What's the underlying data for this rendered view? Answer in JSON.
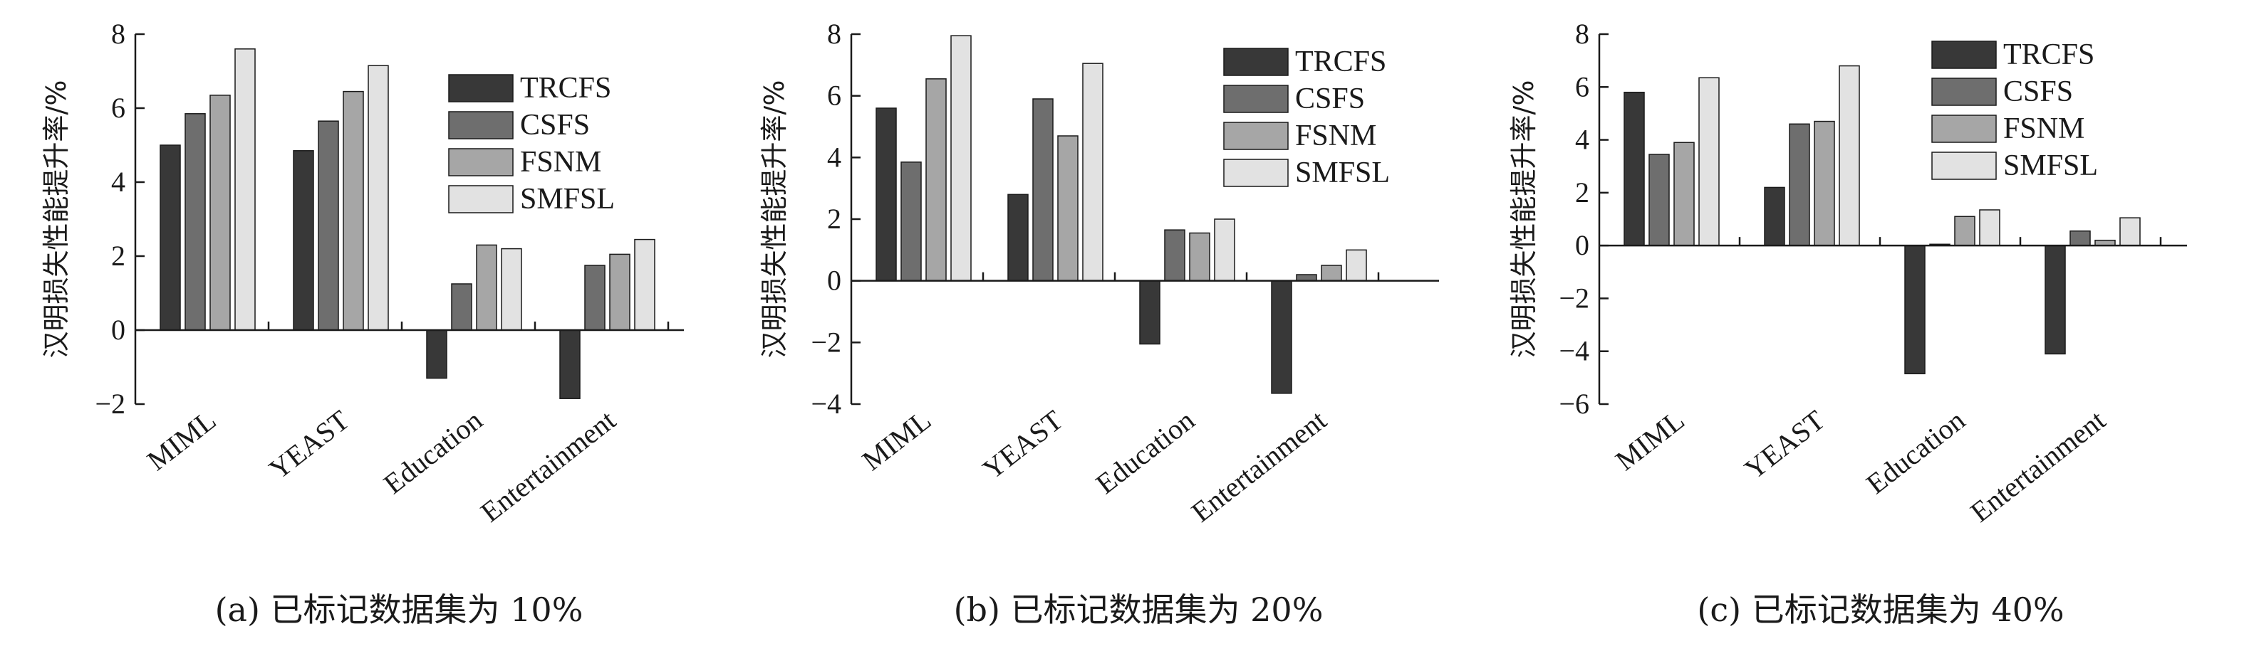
{
  "colors": {
    "TRCFS": "#383838",
    "CSFS": "#6e6e6e",
    "FSNM": "#a6a6a6",
    "SMFSL": "#e2e2e2",
    "axis": "#1a1a1a"
  },
  "chart_data": [
    {
      "type": "bar",
      "panel": "a",
      "caption": "(a) 已标记数据集为 10%",
      "ylabel": "汉明损失性能提升率/%",
      "categories": [
        "MIML",
        "YEAST",
        "Education",
        "Entertainment"
      ],
      "ylim": [
        -2,
        8
      ],
      "yticks": [
        -2,
        0,
        2,
        4,
        6,
        8
      ],
      "ytick_labels": [
        "−2",
        "0",
        "2",
        "4",
        "6",
        "8"
      ],
      "legend_position": "top-right",
      "series": [
        {
          "name": "TRCFS",
          "values": [
            5.0,
            4.85,
            -1.3,
            -1.85
          ]
        },
        {
          "name": "CSFS",
          "values": [
            5.85,
            5.65,
            1.25,
            1.75
          ]
        },
        {
          "name": "FSNM",
          "values": [
            6.35,
            6.45,
            2.3,
            2.05
          ]
        },
        {
          "name": "SMFSL",
          "values": [
            7.6,
            7.15,
            2.2,
            2.45
          ]
        }
      ]
    },
    {
      "type": "bar",
      "panel": "b",
      "caption": "(b) 已标记数据集为 20%",
      "ylabel": "汉明损失性能提升率/%",
      "categories": [
        "MIML",
        "YEAST",
        "Education",
        "Entertainment"
      ],
      "ylim": [
        -4,
        8
      ],
      "yticks": [
        -4,
        -2,
        0,
        2,
        4,
        6,
        8
      ],
      "ytick_labels": [
        "−4",
        "−2",
        "0",
        "2",
        "4",
        "6",
        "8"
      ],
      "legend_position": "top-right",
      "series": [
        {
          "name": "TRCFS",
          "values": [
            5.6,
            2.8,
            -2.05,
            -3.65
          ]
        },
        {
          "name": "CSFS",
          "values": [
            3.85,
            5.9,
            1.65,
            0.2
          ]
        },
        {
          "name": "FSNM",
          "values": [
            6.55,
            4.7,
            1.55,
            0.5
          ]
        },
        {
          "name": "SMFSL",
          "values": [
            7.95,
            7.05,
            2.0,
            1.0
          ]
        }
      ]
    },
    {
      "type": "bar",
      "panel": "c",
      "caption": "(c) 已标记数据集为 40%",
      "ylabel": "汉明损失性能提升率/%",
      "categories": [
        "MIML",
        "YEAST",
        "Education",
        "Entertainment"
      ],
      "ylim": [
        -6,
        8
      ],
      "yticks": [
        -6,
        -4,
        -2,
        0,
        2,
        4,
        6,
        8
      ],
      "ytick_labels": [
        "−6",
        "−4",
        "−2",
        "0",
        "2",
        "4",
        "6",
        "8"
      ],
      "legend_position": "top-right",
      "series": [
        {
          "name": "TRCFS",
          "values": [
            5.8,
            2.2,
            -4.85,
            -4.1
          ]
        },
        {
          "name": "CSFS",
          "values": [
            3.45,
            4.6,
            0.05,
            0.55
          ]
        },
        {
          "name": "FSNM",
          "values": [
            3.9,
            4.7,
            1.1,
            0.2
          ]
        },
        {
          "name": "SMFSL",
          "values": [
            6.35,
            6.8,
            1.35,
            1.05
          ]
        }
      ]
    }
  ]
}
